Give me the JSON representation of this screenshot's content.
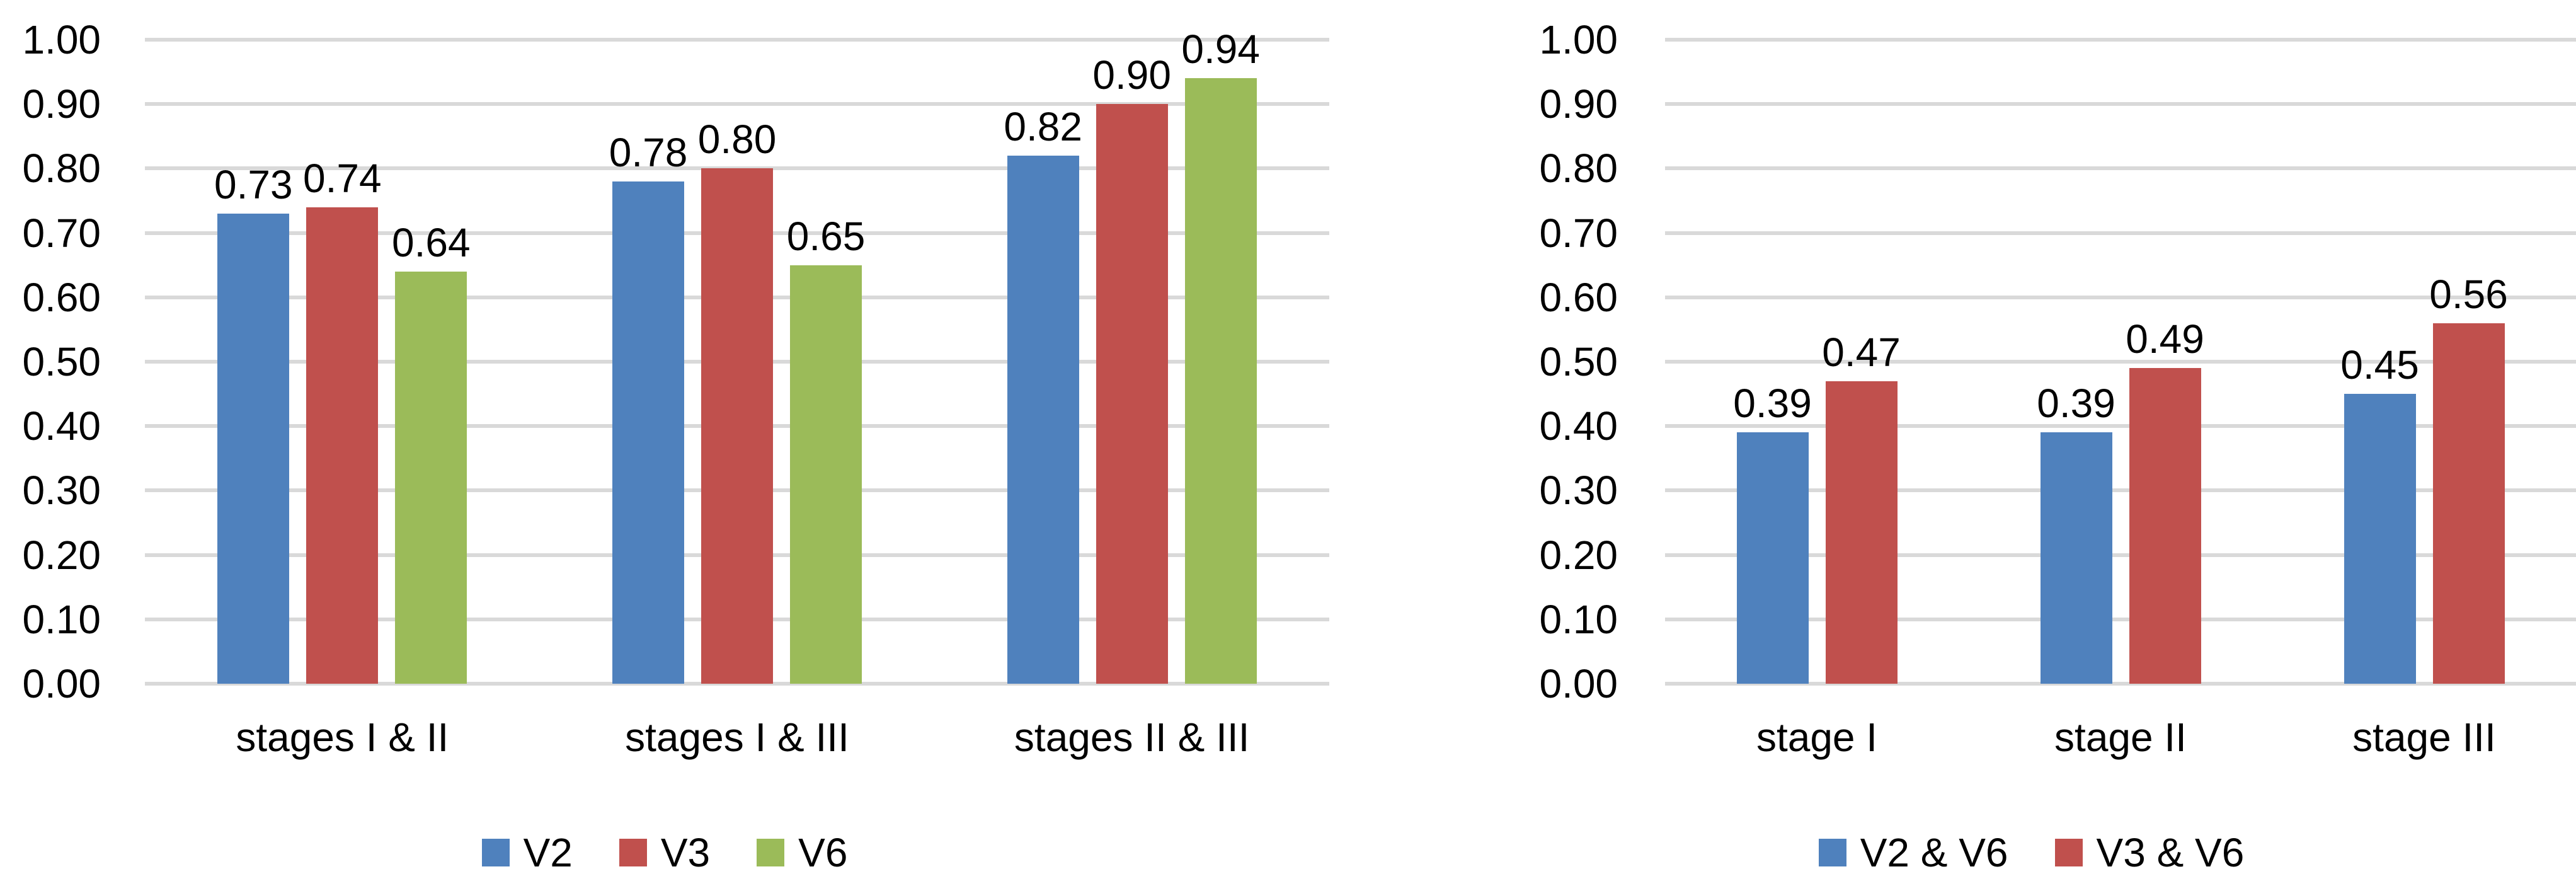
{
  "background": "#FFFFFF",
  "grid_color": "#D9D9D9",
  "text_color": "#000000",
  "chart_data": [
    {
      "type": "bar",
      "title": "",
      "categories": [
        "stages I & II",
        "stages I & III",
        "stages II & III"
      ],
      "series": [
        {
          "name": "V2",
          "color": "#4F81BD",
          "values": [
            0.73,
            0.78,
            0.82
          ],
          "labels": [
            "0.73",
            "0.78",
            "0.82"
          ]
        },
        {
          "name": "V3",
          "color": "#C0504D",
          "values": [
            0.74,
            0.8,
            0.9
          ],
          "labels": [
            "0.74",
            "0.80",
            "0.90"
          ]
        },
        {
          "name": "V6",
          "color": "#9BBB59",
          "values": [
            0.64,
            0.65,
            0.94
          ],
          "labels": [
            "0.64",
            "0.65",
            "0.94"
          ]
        }
      ],
      "ylim": [
        0,
        1.0
      ],
      "ytick_labels": [
        "1.00",
        "0.90",
        "0.80",
        "0.70",
        "0.60",
        "0.50",
        "0.40",
        "0.30",
        "0.20",
        "0.10",
        "0.00"
      ],
      "grid": true,
      "data_labels": true,
      "legend_position": "bottom",
      "legend": [
        "V2",
        "V3",
        "V6"
      ]
    },
    {
      "type": "bar",
      "title": "",
      "categories": [
        "stage I",
        "stage II",
        "stage III"
      ],
      "series": [
        {
          "name": "V2 & V6",
          "color": "#4F81BD",
          "values": [
            0.39,
            0.39,
            0.45
          ],
          "labels": [
            "0.39",
            "0.39",
            "0.45"
          ]
        },
        {
          "name": "V3 & V6",
          "color": "#C0504D",
          "values": [
            0.47,
            0.49,
            0.56
          ],
          "labels": [
            "0.47",
            "0.49",
            "0.56"
          ]
        }
      ],
      "ylim": [
        0,
        1.0
      ],
      "ytick_labels": [
        "1.00",
        "0.90",
        "0.80",
        "0.70",
        "0.60",
        "0.50",
        "0.40",
        "0.30",
        "0.20",
        "0.10",
        "0.00"
      ],
      "grid": true,
      "data_labels": true,
      "legend_position": "bottom",
      "legend": [
        "V2 & V6",
        "V3 & V6"
      ]
    }
  ]
}
